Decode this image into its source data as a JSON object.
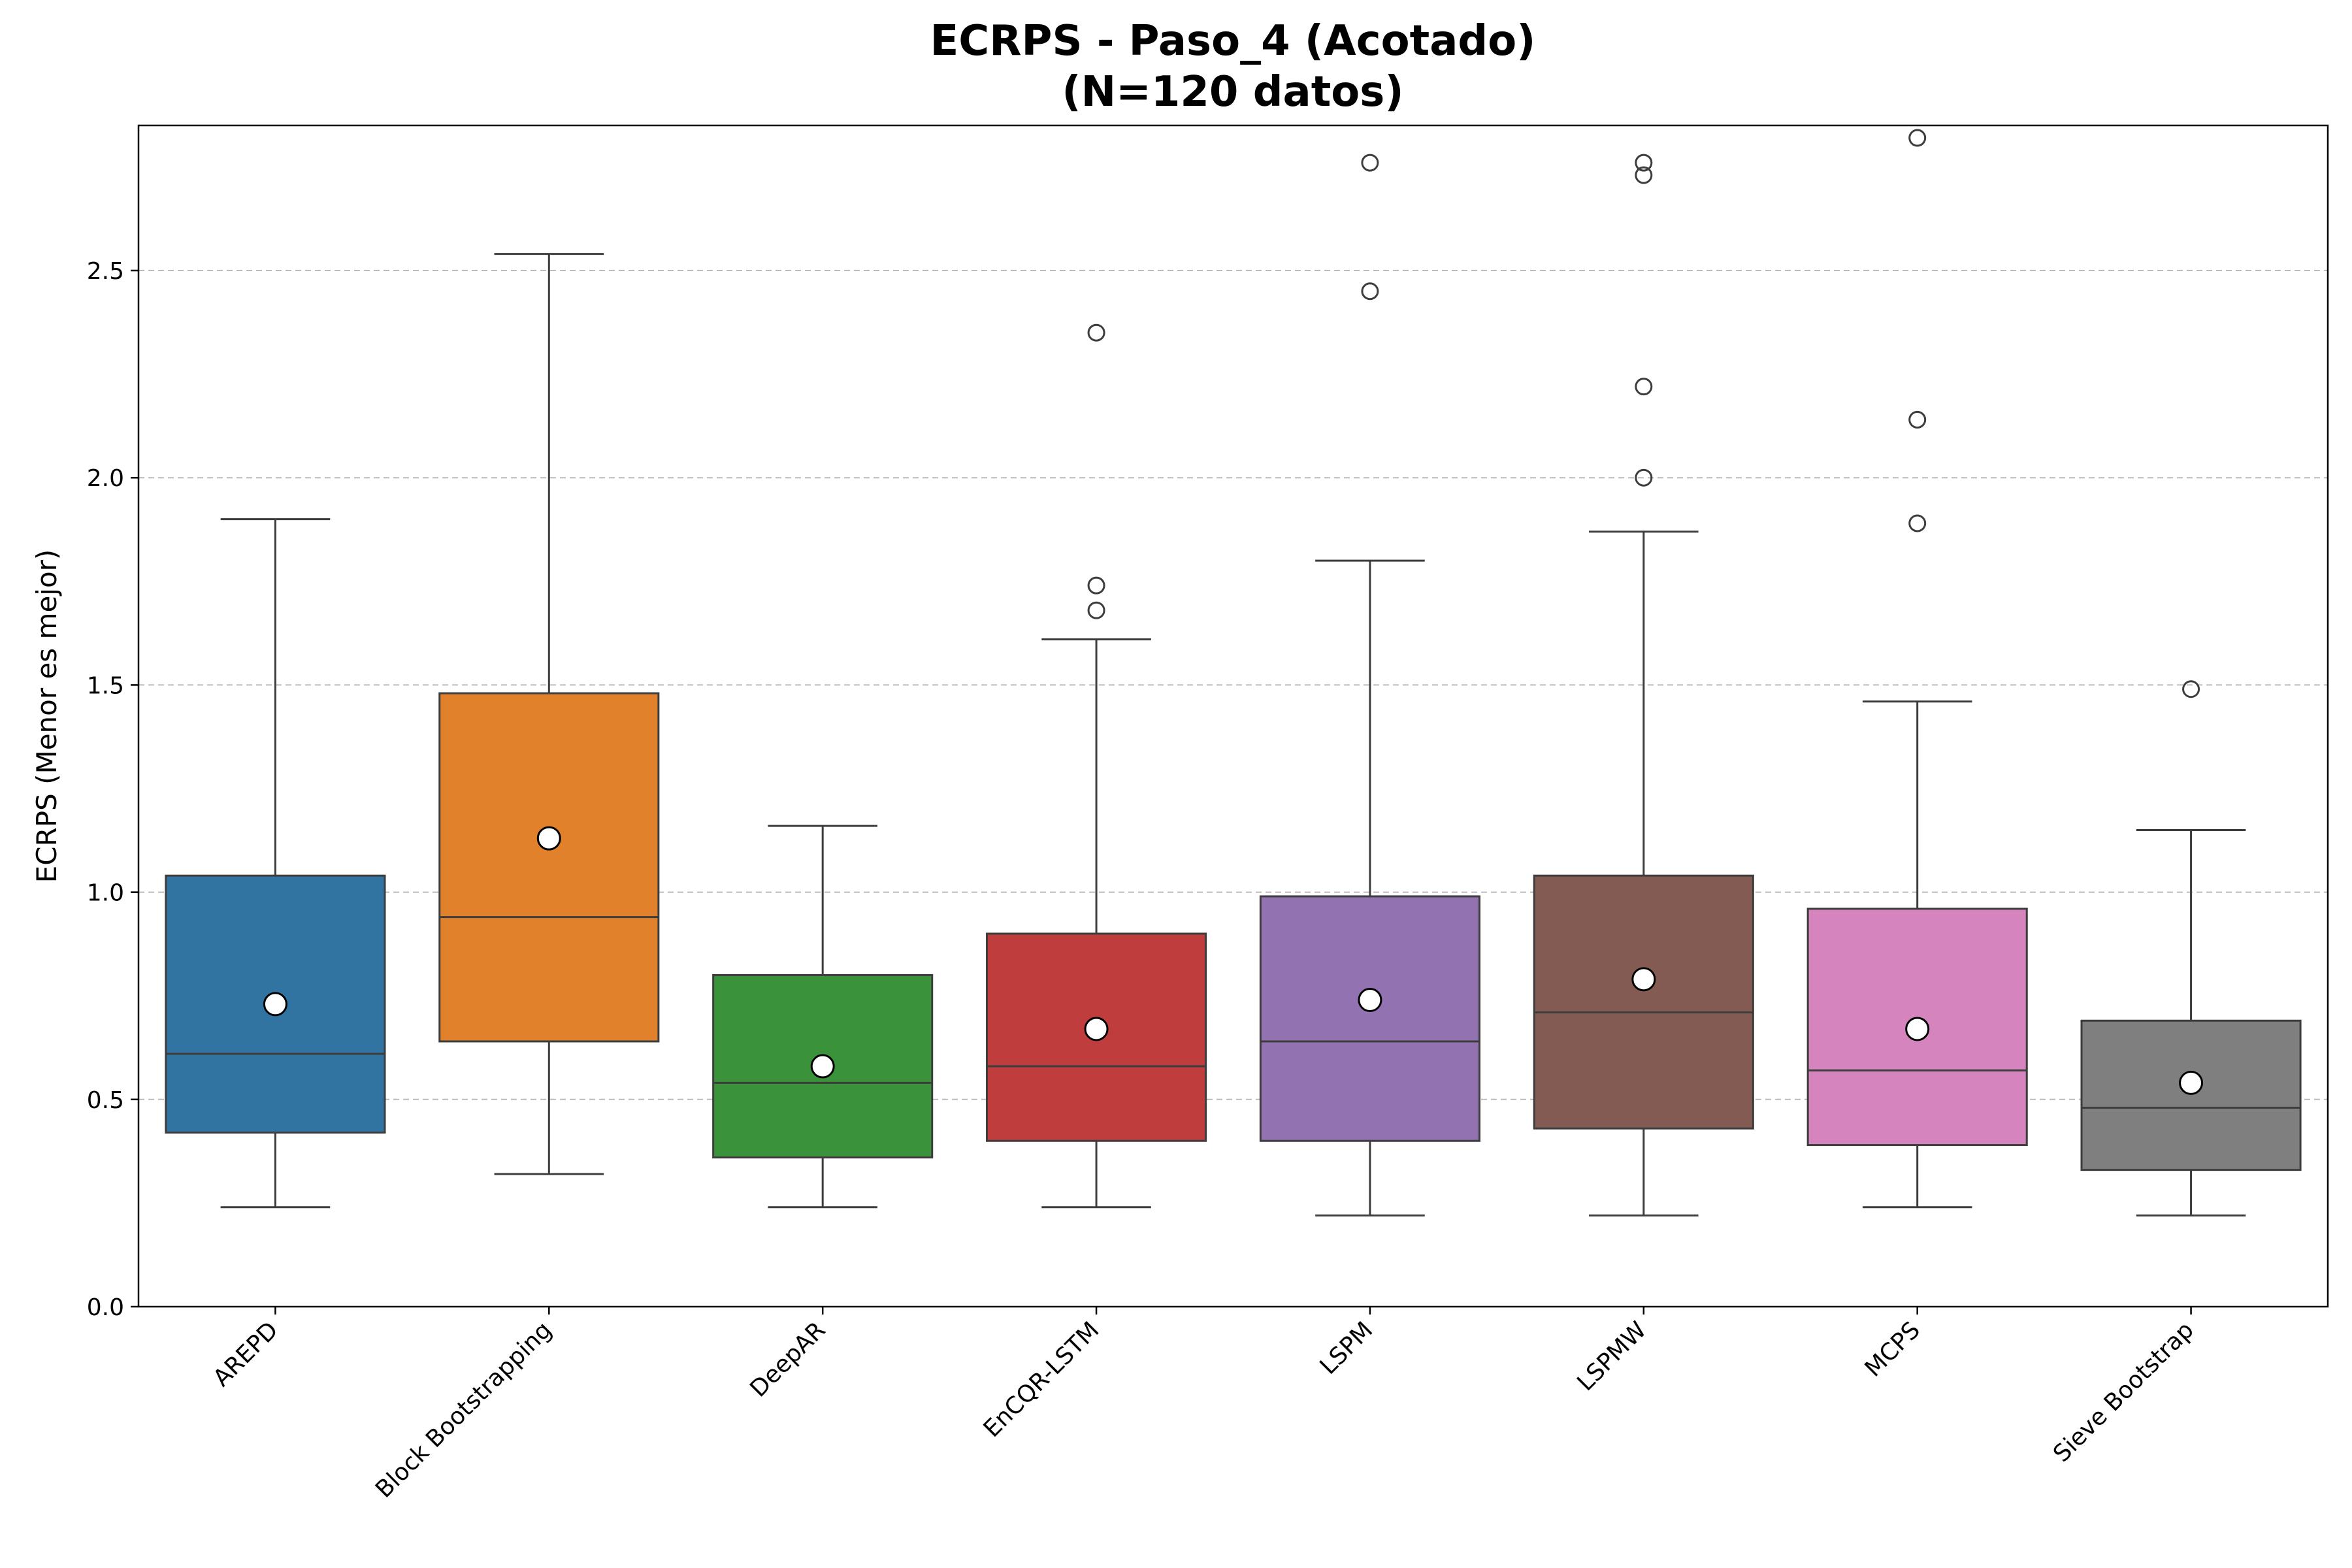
{
  "chart_data": {
    "type": "box",
    "title_line1": "ECRPS - Paso_4 (Acotado)",
    "title_line2": "(N=120 datos)",
    "ylabel": "ECRPS (Menor es mejor)",
    "xlabel": "",
    "ylim": [
      0,
      2.85
    ],
    "yticks": [
      "0.0",
      "0.5",
      "1.0",
      "1.5",
      "2.0",
      "2.5"
    ],
    "grid": "y-dashed",
    "categories": [
      "AREPD",
      "Block Bootstrapping",
      "DeepAR",
      "EnCQR-LSTM",
      "LSPM",
      "LSPMW",
      "MCPS",
      "Sieve Bootstrap"
    ],
    "colors": [
      "#3274a1",
      "#e1812c",
      "#3a923a",
      "#c03d3e",
      "#9372b2",
      "#845b53",
      "#d684bd",
      "#7f7f7f"
    ],
    "boxes": [
      {
        "whisker_low": 0.24,
        "q1": 0.42,
        "median": 0.61,
        "q3": 1.04,
        "whisker_high": 1.9,
        "mean": 0.73,
        "outliers": []
      },
      {
        "whisker_low": 0.32,
        "q1": 0.64,
        "median": 0.94,
        "q3": 1.48,
        "whisker_high": 2.54,
        "mean": 1.13,
        "outliers": []
      },
      {
        "whisker_low": 0.24,
        "q1": 0.36,
        "median": 0.54,
        "q3": 0.8,
        "whisker_high": 1.16,
        "mean": 0.58,
        "outliers": []
      },
      {
        "whisker_low": 0.24,
        "q1": 0.4,
        "median": 0.58,
        "q3": 0.9,
        "whisker_high": 1.61,
        "mean": 0.67,
        "outliers": [
          1.68,
          1.74,
          2.35
        ]
      },
      {
        "whisker_low": 0.22,
        "q1": 0.4,
        "median": 0.64,
        "q3": 0.99,
        "whisker_high": 1.8,
        "mean": 0.74,
        "outliers": [
          2.45,
          2.76
        ]
      },
      {
        "whisker_low": 0.22,
        "q1": 0.43,
        "median": 0.71,
        "q3": 1.04,
        "whisker_high": 1.87,
        "mean": 0.79,
        "outliers": [
          2.0,
          2.22,
          2.73,
          2.76
        ]
      },
      {
        "whisker_low": 0.24,
        "q1": 0.39,
        "median": 0.57,
        "q3": 0.96,
        "whisker_high": 1.46,
        "mean": 0.67,
        "outliers": [
          1.89,
          2.14,
          2.82
        ]
      },
      {
        "whisker_low": 0.22,
        "q1": 0.33,
        "median": 0.48,
        "q3": 0.69,
        "whisker_high": 1.15,
        "mean": 0.54,
        "outliers": [
          1.49
        ]
      }
    ]
  }
}
